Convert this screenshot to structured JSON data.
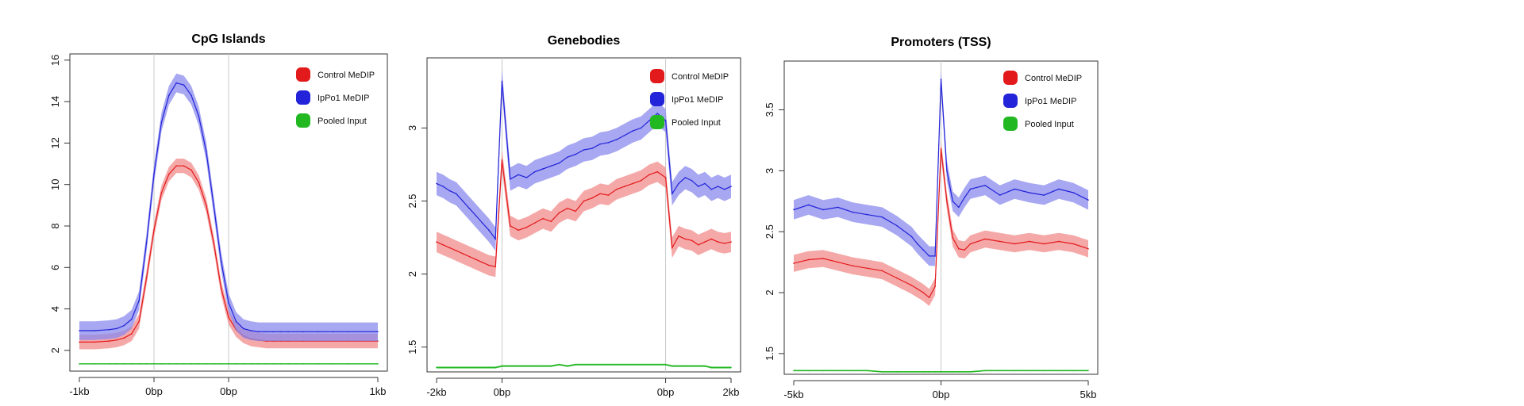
{
  "legend": {
    "control_label": "Control MeDIP",
    "ippo1_label": "IpPo1 MeDIP",
    "pooled_label": "Pooled Input"
  },
  "colors": {
    "control": "#e31a1c",
    "control_band": "#f28b8b",
    "ippo1": "#2323d9",
    "ippo1_band": "#8a8aee",
    "pooled": "#22b822",
    "vline": "#c8c8c8"
  },
  "chart_data": [
    {
      "type": "line",
      "title": "CpG Islands",
      "xlabel": "",
      "ylabel": "",
      "x": [
        -1.0,
        -0.8,
        -0.6,
        -0.5,
        -0.4,
        -0.3,
        -0.2,
        -0.1,
        0.0,
        0.1,
        0.2,
        0.3,
        0.4,
        0.5,
        0.6,
        0.7,
        0.8,
        0.9,
        1.0,
        1.1,
        1.2,
        1.3,
        1.4,
        1.5,
        1.6,
        1.7,
        1.8,
        2.0,
        2.2,
        2.4,
        2.6,
        3.0
      ],
      "xtick_values": [
        -1,
        0,
        1,
        3
      ],
      "xtick_labels": [
        "-1kb",
        "0bp",
        "0bp",
        "1kb"
      ],
      "vlines": [
        0,
        1
      ],
      "ylim": [
        1.0,
        16.3
      ],
      "yticks": [
        2,
        4,
        6,
        8,
        10,
        12,
        14,
        16
      ],
      "series": [
        {
          "name": "Control MeDIP",
          "band": 0.35,
          "values": [
            2.4,
            2.4,
            2.45,
            2.5,
            2.6,
            2.8,
            3.4,
            5.5,
            7.8,
            9.6,
            10.5,
            10.9,
            10.9,
            10.7,
            10.1,
            9.0,
            7.2,
            5.0,
            3.6,
            3.0,
            2.7,
            2.55,
            2.5,
            2.45,
            2.45,
            2.45,
            2.45,
            2.45,
            2.45,
            2.45,
            2.45,
            2.45
          ]
        },
        {
          "name": "IpPo1 MeDIP",
          "band": 0.45,
          "values": [
            2.95,
            2.95,
            3.0,
            3.05,
            3.2,
            3.5,
            4.4,
            7.2,
            10.5,
            13.0,
            14.3,
            14.9,
            14.8,
            14.3,
            13.3,
            11.6,
            9.0,
            6.3,
            4.3,
            3.4,
            3.05,
            2.95,
            2.9,
            2.9,
            2.9,
            2.9,
            2.9,
            2.9,
            2.9,
            2.9,
            2.9,
            2.9
          ]
        },
        {
          "name": "Pooled Input",
          "band": 0.03,
          "values": [
            1.35,
            1.35,
            1.35,
            1.35,
            1.35,
            1.35,
            1.35,
            1.35,
            1.35,
            1.35,
            1.35,
            1.35,
            1.35,
            1.35,
            1.35,
            1.35,
            1.35,
            1.35,
            1.35,
            1.35,
            1.35,
            1.35,
            1.35,
            1.35,
            1.35,
            1.35,
            1.35,
            1.35,
            1.35,
            1.35,
            1.35,
            1.35
          ]
        }
      ]
    },
    {
      "type": "line",
      "title": "Genebodies",
      "xlabel": "",
      "ylabel": "",
      "x": [
        -2.0,
        -1.8,
        -1.6,
        -1.4,
        -1.2,
        -1.0,
        -0.8,
        -0.6,
        -0.4,
        -0.2,
        0.0,
        0.25,
        0.5,
        0.75,
        1.0,
        1.25,
        1.5,
        1.75,
        2.0,
        2.25,
        2.5,
        2.75,
        3.0,
        3.25,
        3.5,
        3.75,
        4.0,
        4.25,
        4.5,
        4.75,
        5.0,
        5.2,
        5.4,
        5.6,
        5.8,
        6.0,
        6.2,
        6.4,
        6.6,
        6.8,
        7.0
      ],
      "xtick_values": [
        -2,
        0,
        5,
        7
      ],
      "xtick_labels": [
        "-2kb",
        "0bp",
        "0bp",
        "2kb"
      ],
      "vlines": [
        0,
        5
      ],
      "ylim": [
        1.33,
        3.48
      ],
      "yticks": [
        1.5,
        2.0,
        2.5,
        3.0
      ],
      "series": [
        {
          "name": "Control MeDIP",
          "band": 0.07,
          "values": [
            2.22,
            2.2,
            2.18,
            2.16,
            2.14,
            2.12,
            2.1,
            2.08,
            2.06,
            2.05,
            2.78,
            2.33,
            2.3,
            2.32,
            2.35,
            2.38,
            2.36,
            2.42,
            2.45,
            2.43,
            2.5,
            2.52,
            2.55,
            2.54,
            2.58,
            2.6,
            2.62,
            2.64,
            2.68,
            2.7,
            2.66,
            2.18,
            2.26,
            2.24,
            2.23,
            2.2,
            2.22,
            2.24,
            2.22,
            2.21,
            2.22
          ]
        },
        {
          "name": "IpPo1 MeDIP",
          "band": 0.08,
          "values": [
            2.62,
            2.6,
            2.57,
            2.55,
            2.5,
            2.45,
            2.4,
            2.35,
            2.3,
            2.24,
            3.32,
            2.65,
            2.68,
            2.66,
            2.7,
            2.72,
            2.74,
            2.76,
            2.8,
            2.82,
            2.85,
            2.86,
            2.89,
            2.9,
            2.92,
            2.95,
            2.98,
            3.0,
            3.05,
            3.1,
            3.05,
            2.55,
            2.62,
            2.66,
            2.64,
            2.6,
            2.62,
            2.58,
            2.6,
            2.58,
            2.6
          ]
        },
        {
          "name": "Pooled Input",
          "band": 0.006,
          "values": [
            1.36,
            1.36,
            1.36,
            1.36,
            1.36,
            1.36,
            1.36,
            1.36,
            1.36,
            1.36,
            1.37,
            1.37,
            1.37,
            1.37,
            1.37,
            1.37,
            1.37,
            1.38,
            1.37,
            1.38,
            1.38,
            1.38,
            1.38,
            1.38,
            1.38,
            1.38,
            1.38,
            1.38,
            1.38,
            1.38,
            1.38,
            1.37,
            1.37,
            1.37,
            1.37,
            1.37,
            1.37,
            1.36,
            1.36,
            1.36,
            1.36
          ]
        }
      ]
    },
    {
      "type": "line",
      "title": "Promoters (TSS)",
      "xlabel": "",
      "ylabel": "",
      "x": [
        -5.0,
        -4.5,
        -4.0,
        -3.5,
        -3.0,
        -2.5,
        -2.0,
        -1.5,
        -1.0,
        -0.8,
        -0.6,
        -0.4,
        -0.2,
        0.0,
        0.2,
        0.4,
        0.6,
        0.8,
        1.0,
        1.5,
        2.0,
        2.5,
        3.0,
        3.5,
        4.0,
        4.5,
        5.0
      ],
      "xtick_values": [
        -5,
        0,
        5
      ],
      "xtick_labels": [
        "-5kb",
        "0bp",
        "5kb"
      ],
      "vlines": [
        0
      ],
      "ylim": [
        1.33,
        3.9
      ],
      "yticks": [
        1.5,
        2.0,
        2.5,
        3.0,
        3.5
      ],
      "series": [
        {
          "name": "Control MeDIP",
          "band": 0.07,
          "values": [
            2.24,
            2.27,
            2.28,
            2.25,
            2.22,
            2.2,
            2.18,
            2.12,
            2.06,
            2.03,
            2.0,
            1.96,
            2.05,
            3.18,
            2.75,
            2.45,
            2.36,
            2.35,
            2.4,
            2.44,
            2.42,
            2.4,
            2.42,
            2.4,
            2.42,
            2.4,
            2.36
          ]
        },
        {
          "name": "IpPo1 MeDIP",
          "band": 0.08,
          "values": [
            2.68,
            2.72,
            2.68,
            2.7,
            2.66,
            2.64,
            2.62,
            2.55,
            2.46,
            2.4,
            2.35,
            2.3,
            2.3,
            3.75,
            3.0,
            2.75,
            2.7,
            2.78,
            2.85,
            2.88,
            2.8,
            2.85,
            2.82,
            2.8,
            2.85,
            2.82,
            2.76
          ]
        },
        {
          "name": "Pooled Input",
          "band": 0.006,
          "values": [
            1.36,
            1.36,
            1.36,
            1.36,
            1.36,
            1.36,
            1.35,
            1.35,
            1.35,
            1.35,
            1.35,
            1.35,
            1.35,
            1.35,
            1.35,
            1.35,
            1.35,
            1.35,
            1.35,
            1.36,
            1.36,
            1.36,
            1.36,
            1.36,
            1.36,
            1.36,
            1.36
          ]
        }
      ]
    }
  ]
}
